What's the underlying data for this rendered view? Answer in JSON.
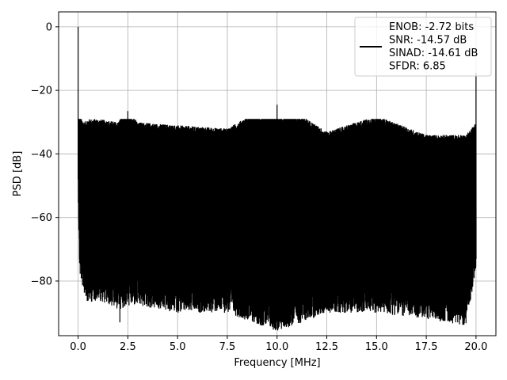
{
  "chart_data": {
    "type": "line",
    "title": "",
    "xlabel": "Frequency [MHz]",
    "ylabel": "PSD [dB]",
    "xlim": [
      -0.98,
      21.0
    ],
    "ylim": [
      -97.2,
      4.7
    ],
    "xticks": [
      0.0,
      2.5,
      5.0,
      7.5,
      10.0,
      12.5,
      15.0,
      17.5,
      20.0
    ],
    "xtick_labels": [
      "0.0",
      "2.5",
      "5.0",
      "7.5",
      "10.0",
      "12.5",
      "15.0",
      "17.5",
      "20.0"
    ],
    "yticks": [
      0,
      -20,
      -40,
      -60,
      -80
    ],
    "ytick_labels": [
      "0",
      "−20",
      "−40",
      "−60",
      "−80"
    ],
    "grid": true,
    "legend_position": "top-right",
    "series": [
      {
        "color": "#000000",
        "description_points": {
          "x": [
            0.0,
            0.05,
            0.1,
            0.3,
            0.5,
            1.0,
            2.0,
            2.5,
            3.0,
            5.0,
            7.5,
            10.0,
            12.5,
            15.0,
            17.5,
            19.5,
            20.0
          ],
          "upper_envelope": [
            0.0,
            -22,
            -30,
            -32,
            -31,
            -31,
            -32,
            -27,
            -32,
            -33,
            -34,
            -25,
            -35,
            -30,
            -36,
            -36,
            -15
          ],
          "lower_envelope": [
            -48,
            -70,
            -75,
            -80,
            -83,
            -82,
            -85,
            -84,
            -84,
            -86,
            -86,
            -92,
            -86,
            -86,
            -88,
            -90,
            -72
          ]
        },
        "spikes": [
          {
            "x": 0.0,
            "y": 0.0
          },
          {
            "x": 2.5,
            "y": -26.5
          },
          {
            "x": 10.0,
            "y": -24.5
          },
          {
            "x": 15.0,
            "y": -30.5
          },
          {
            "x": 20.0,
            "y": -14.5
          }
        ],
        "deep_notches": [
          {
            "x": 2.1,
            "y": -93.0
          },
          {
            "x": 10.1,
            "y": -93.5
          },
          {
            "x": 18.0,
            "y": -90.5
          },
          {
            "x": 19.4,
            "y": -90.5
          },
          {
            "x": 4.6,
            "y": -89.5
          }
        ]
      }
    ],
    "legend": {
      "lines": [
        "ENOB: -2.72 bits",
        "SNR: -14.57 dB",
        "SINAD: -14.61 dB",
        "SFDR: 6.85"
      ]
    }
  }
}
